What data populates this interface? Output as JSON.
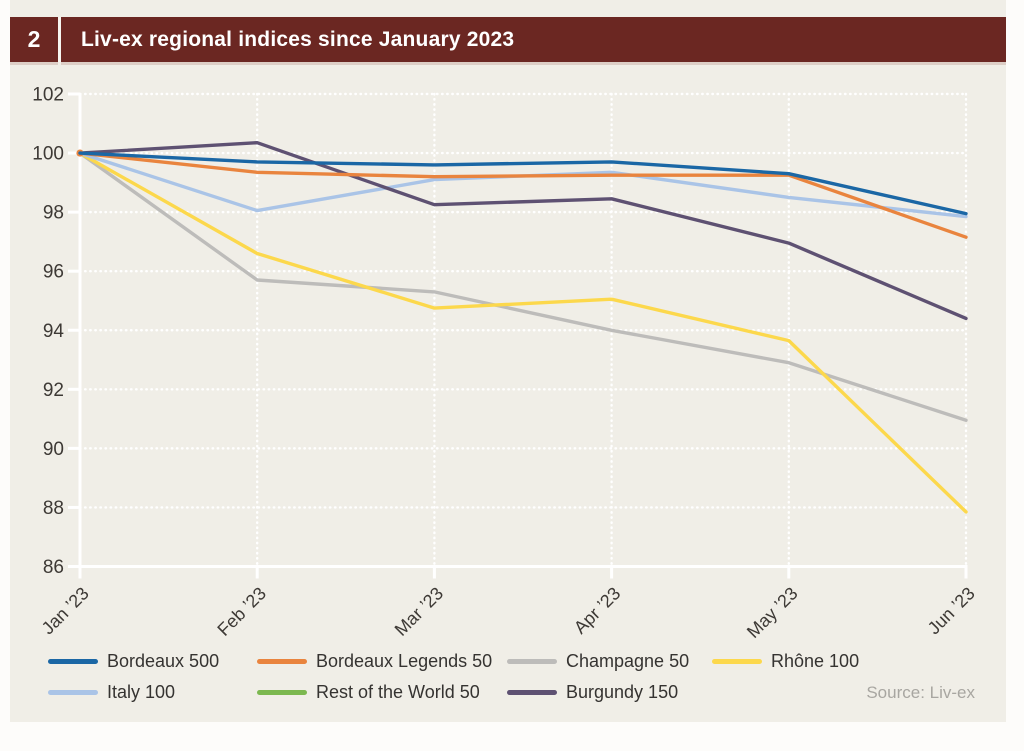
{
  "header": {
    "number": "2",
    "title": "Liv-ex regional indices since January 2023"
  },
  "source_label": "Source: Liv-ex",
  "colors": {
    "panel_background": "#f0eee7",
    "header_maroon": "#6b2722",
    "grid_white": "#ffffff",
    "axis_label": "#3d3935",
    "legend_text": "#353331",
    "source_text": "#a8a6a1"
  },
  "chart_data": {
    "type": "line",
    "title": "Liv-ex regional indices since January 2023",
    "x": [
      "Jan ’23",
      "Feb ’23",
      "Mar ’23",
      "Apr ’23",
      "May ’23",
      "Jun ’23"
    ],
    "xlabel": "",
    "ylabel": "",
    "ylim": [
      86,
      102
    ],
    "yticks": [
      86,
      88,
      90,
      92,
      94,
      96,
      98,
      100,
      102
    ],
    "grid": "dotted-white-horizontal-and-vertical",
    "legend_position": "bottom",
    "series": [
      {
        "name": "Bordeaux 500",
        "color": "#1b67a5",
        "z": 6,
        "values": [
          100,
          99.7,
          99.6,
          99.7,
          99.3,
          97.95
        ]
      },
      {
        "name": "Bordeaux Legends 50",
        "color": "#e9843e",
        "z": 5,
        "start_marker": true,
        "values": [
          100,
          99.35,
          99.2,
          99.25,
          99.25,
          97.15
        ]
      },
      {
        "name": "Champagne 50",
        "color": "#bdbcba",
        "z": 1,
        "values": [
          100,
          95.7,
          95.3,
          94.0,
          92.9,
          90.95
        ]
      },
      {
        "name": "Rhône 100",
        "color": "#fcd84c",
        "z": 2,
        "values": [
          100,
          96.6,
          94.75,
          95.05,
          93.65,
          87.85
        ]
      },
      {
        "name": "Italy 100",
        "color": "#aac4e7",
        "z": 3,
        "values": [
          100,
          98.05,
          99.1,
          99.35,
          98.5,
          97.85
        ]
      },
      {
        "name": "Rest of the World 50",
        "color": "#7cb850",
        "z": 0,
        "values": null,
        "note": "legend entry only; line not visible in chart area"
      },
      {
        "name": "Burgundy 150",
        "color": "#5e5172",
        "z": 4,
        "values": [
          100,
          100.35,
          98.25,
          98.45,
          96.95,
          94.4
        ]
      }
    ]
  }
}
